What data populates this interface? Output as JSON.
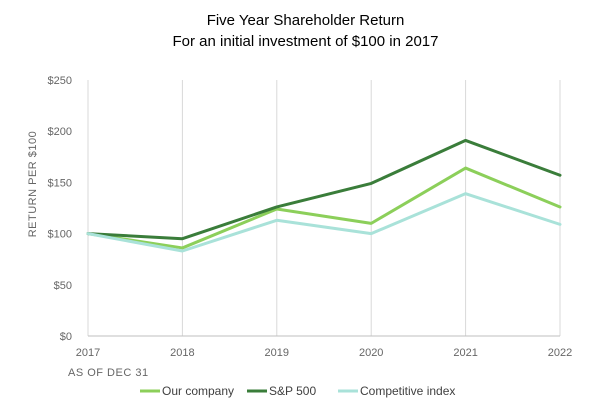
{
  "chart_data": {
    "type": "line",
    "title": "Five Year Shareholder Return",
    "subtitle": "For an initial investment of $100 in 2017",
    "xlabel": "AS OF DEC 31",
    "ylabel": "RETURN PER $100",
    "categories": [
      "2017",
      "2018",
      "2019",
      "2020",
      "2021",
      "2022"
    ],
    "y_ticks": [
      "$0",
      "$50",
      "$100",
      "$150",
      "$200",
      "$250"
    ],
    "ylim": [
      0,
      250
    ],
    "grid": "vertical",
    "legend_position": "bottom",
    "series": [
      {
        "name": "Our company",
        "color": "#8ccf5a",
        "values": [
          100,
          86,
          124,
          110,
          164,
          126
        ]
      },
      {
        "name": "S&P 500",
        "color": "#3a7d3a",
        "values": [
          100,
          95,
          126,
          149,
          191,
          157
        ]
      },
      {
        "name": "Competitive index",
        "color": "#a9e2d9",
        "values": [
          100,
          83,
          113,
          100,
          139,
          109
        ]
      }
    ]
  }
}
